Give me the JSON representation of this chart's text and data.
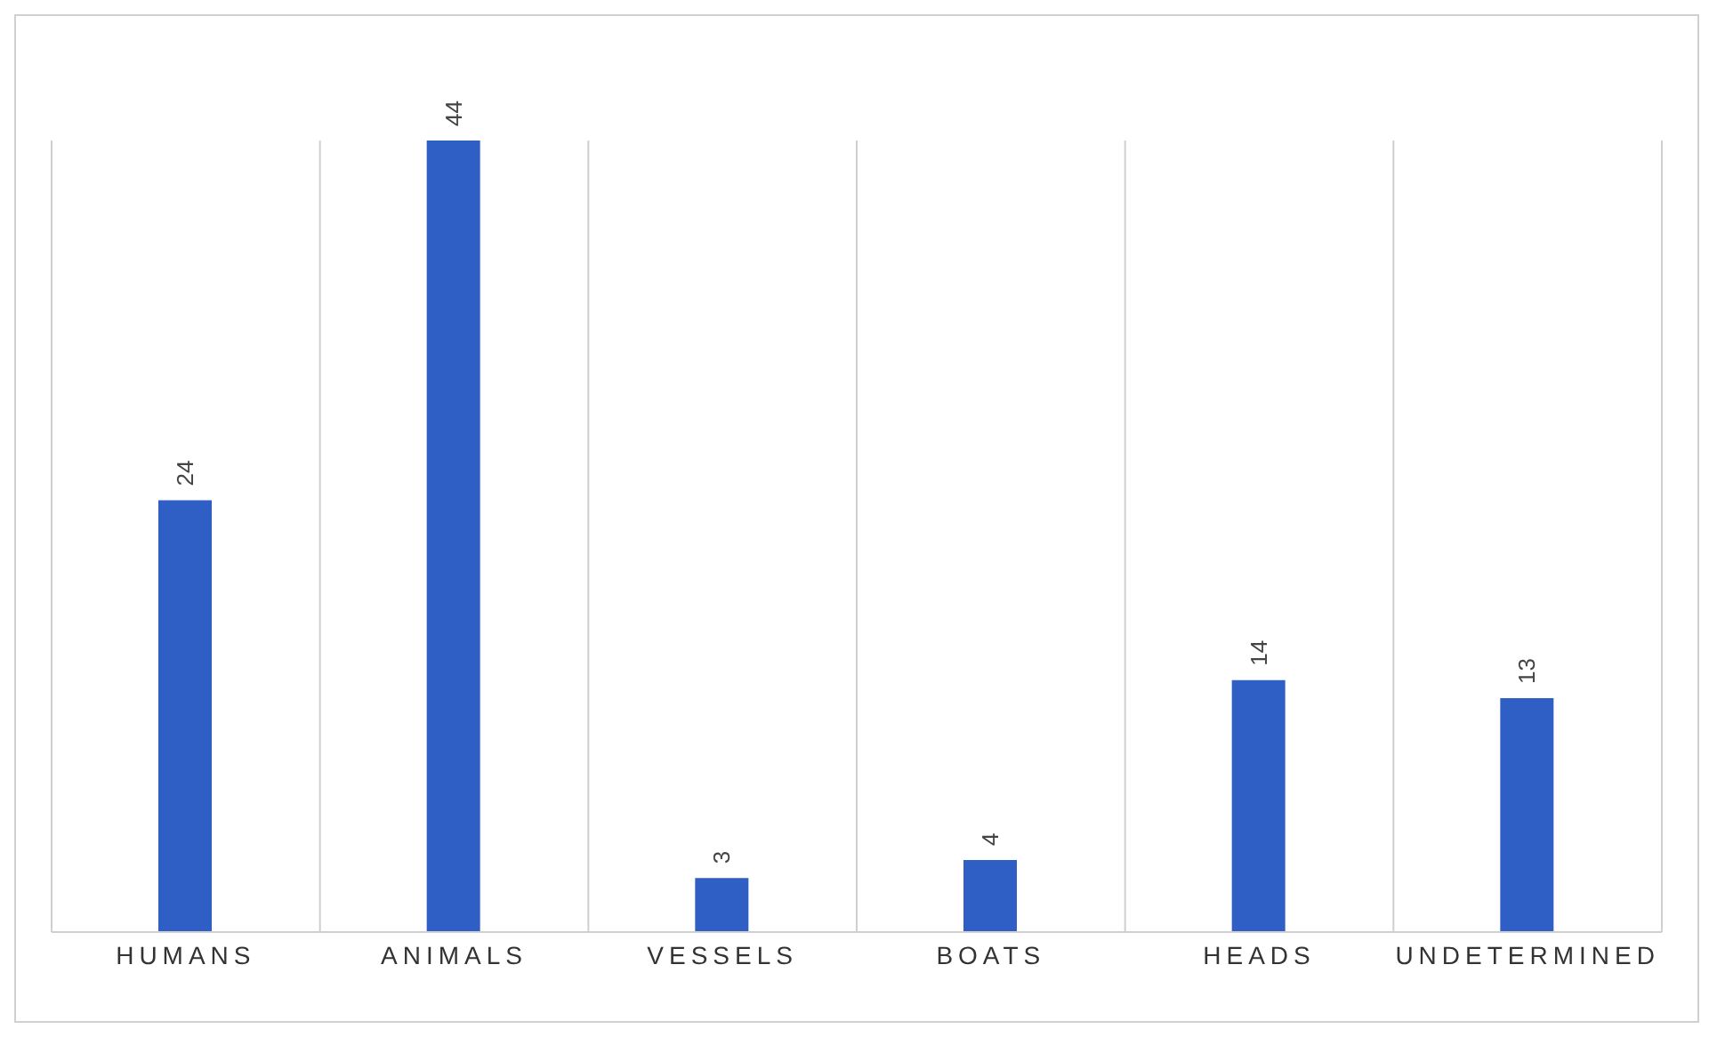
{
  "chart_data": {
    "type": "bar",
    "categories": [
      "HUMANS",
      "ANIMALS",
      "VESSELS",
      "BOATS",
      "HEADS",
      "UNDETERMINED"
    ],
    "values": [
      24,
      44,
      3,
      4,
      14,
      13
    ],
    "color": "#2f5fc4",
    "data_labels": true,
    "grid": "x"
  }
}
